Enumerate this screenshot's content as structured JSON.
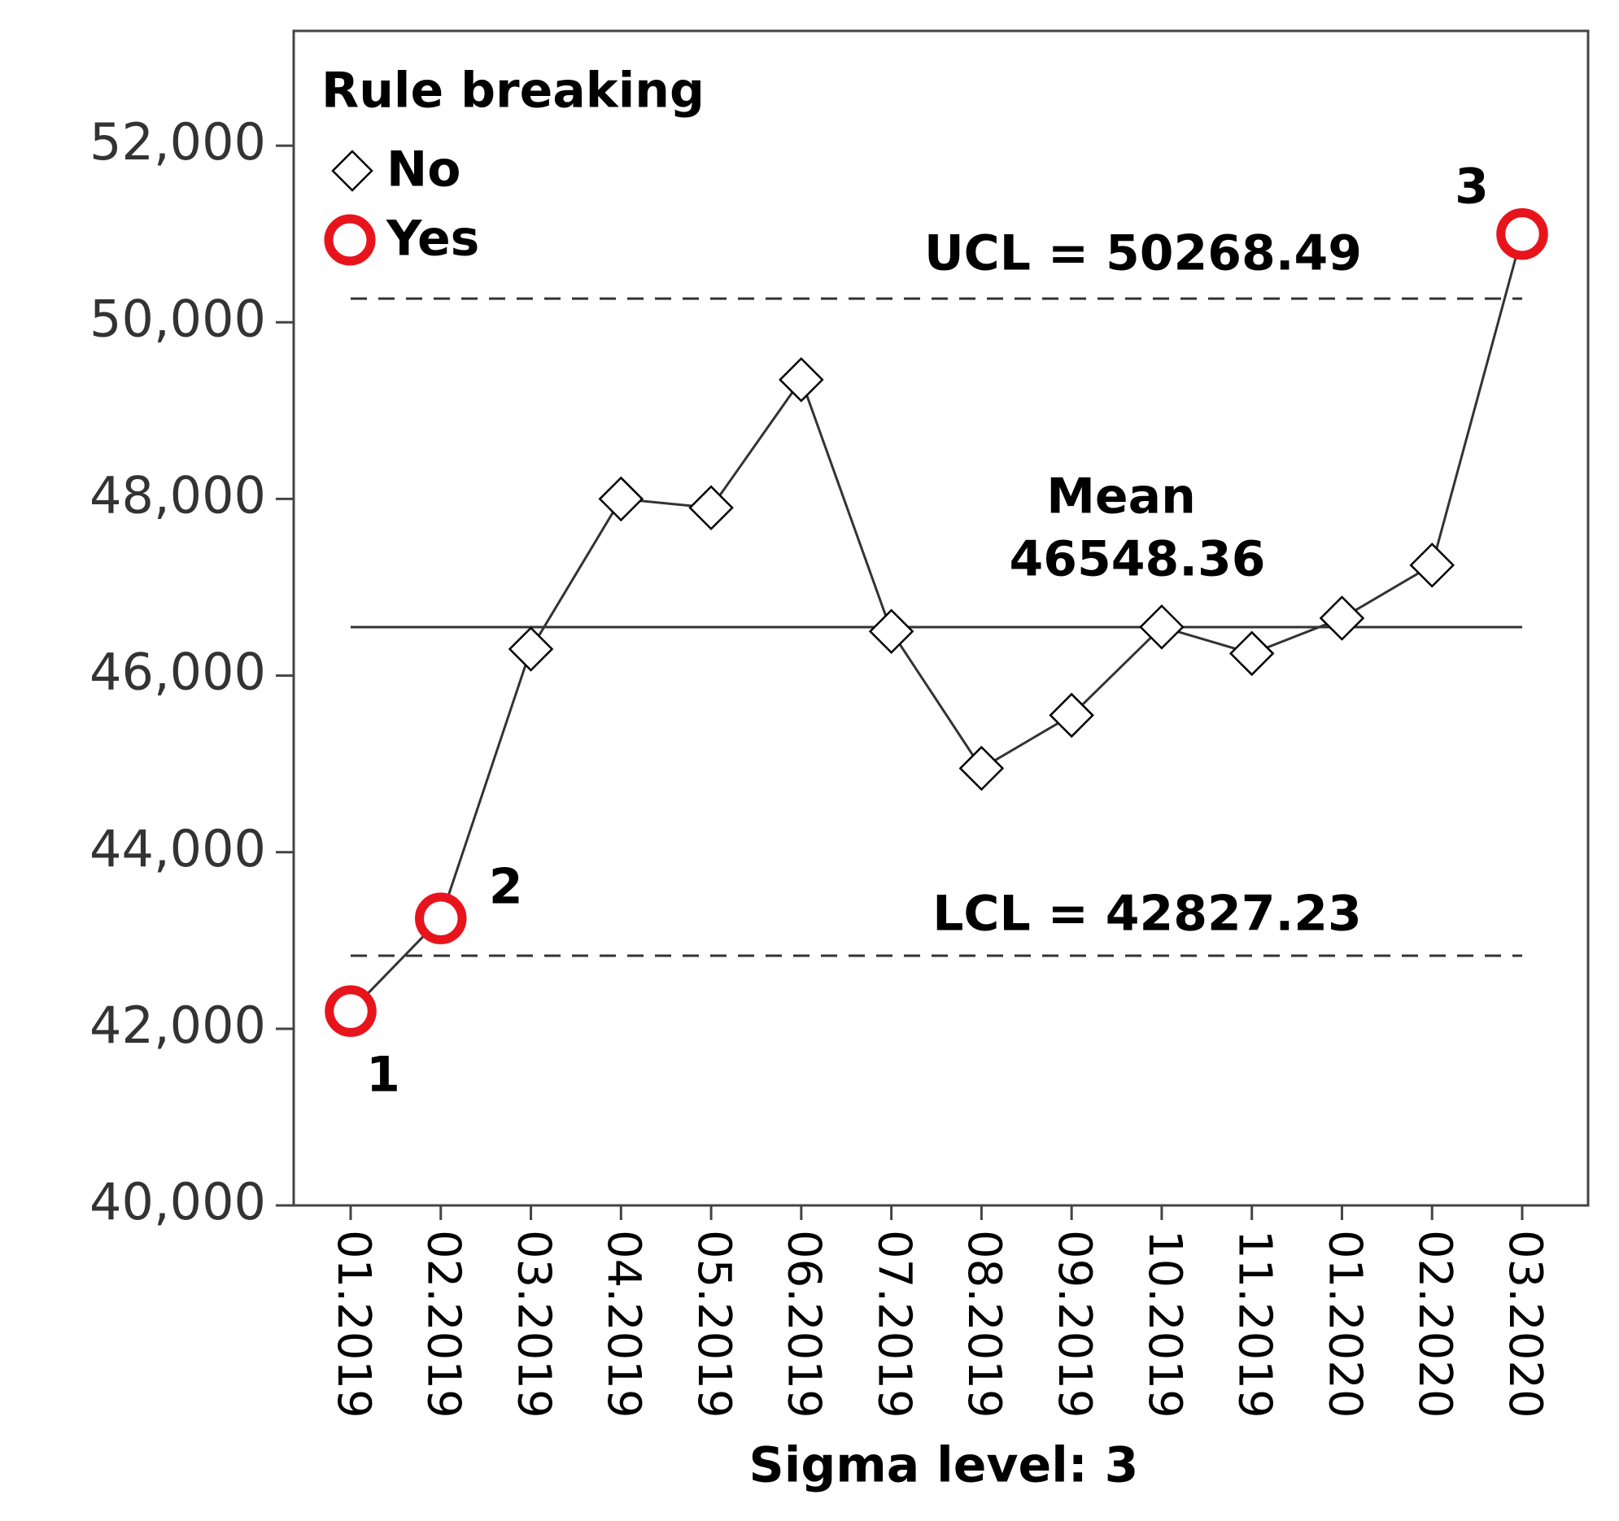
{
  "chart_data": {
    "type": "line",
    "legend_title": "Rule breaking",
    "x_label": "Sigma level: 3",
    "categories": [
      "01.2019",
      "02.2019",
      "03.2019",
      "04.2019",
      "05.2019",
      "06.2019",
      "07.2019",
      "08.2019",
      "09.2019",
      "10.2019",
      "11.2019",
      "01.2020",
      "02.2020",
      "03.2020"
    ],
    "series": [
      {
        "name": "No",
        "marker": "diamond",
        "color": "#000000",
        "values": [
          null,
          null,
          46300,
          48000,
          47900,
          49350,
          46500,
          44950,
          45550,
          46550,
          46250,
          46650,
          47250,
          null
        ]
      },
      {
        "name": "Yes",
        "marker": "circle",
        "color": "#e8141c",
        "values": [
          42200,
          43250,
          null,
          null,
          null,
          null,
          null,
          null,
          null,
          null,
          null,
          null,
          null,
          51000
        ]
      }
    ],
    "point_labels": [
      "1",
      "2",
      null,
      null,
      null,
      null,
      null,
      null,
      null,
      null,
      null,
      null,
      null,
      "3"
    ],
    "ucl": {
      "label": "UCL = 50268.49",
      "value": 50268.49
    },
    "mean": {
      "label": "Mean",
      "value": 46548.36
    },
    "lcl": {
      "label": "LCL = 42827.23",
      "value": 42827.23
    },
    "ylim": [
      40000,
      53300
    ],
    "yticks": [
      {
        "value": 40000,
        "label": "40,000"
      },
      {
        "value": 42000,
        "label": "42,000"
      },
      {
        "value": 44000,
        "label": "44,000"
      },
      {
        "value": 46000,
        "label": "46,000"
      },
      {
        "value": 48000,
        "label": "48,000"
      },
      {
        "value": 50000,
        "label": "50,000"
      },
      {
        "value": 52000,
        "label": "52,000"
      }
    ],
    "line_color": "#333333"
  }
}
